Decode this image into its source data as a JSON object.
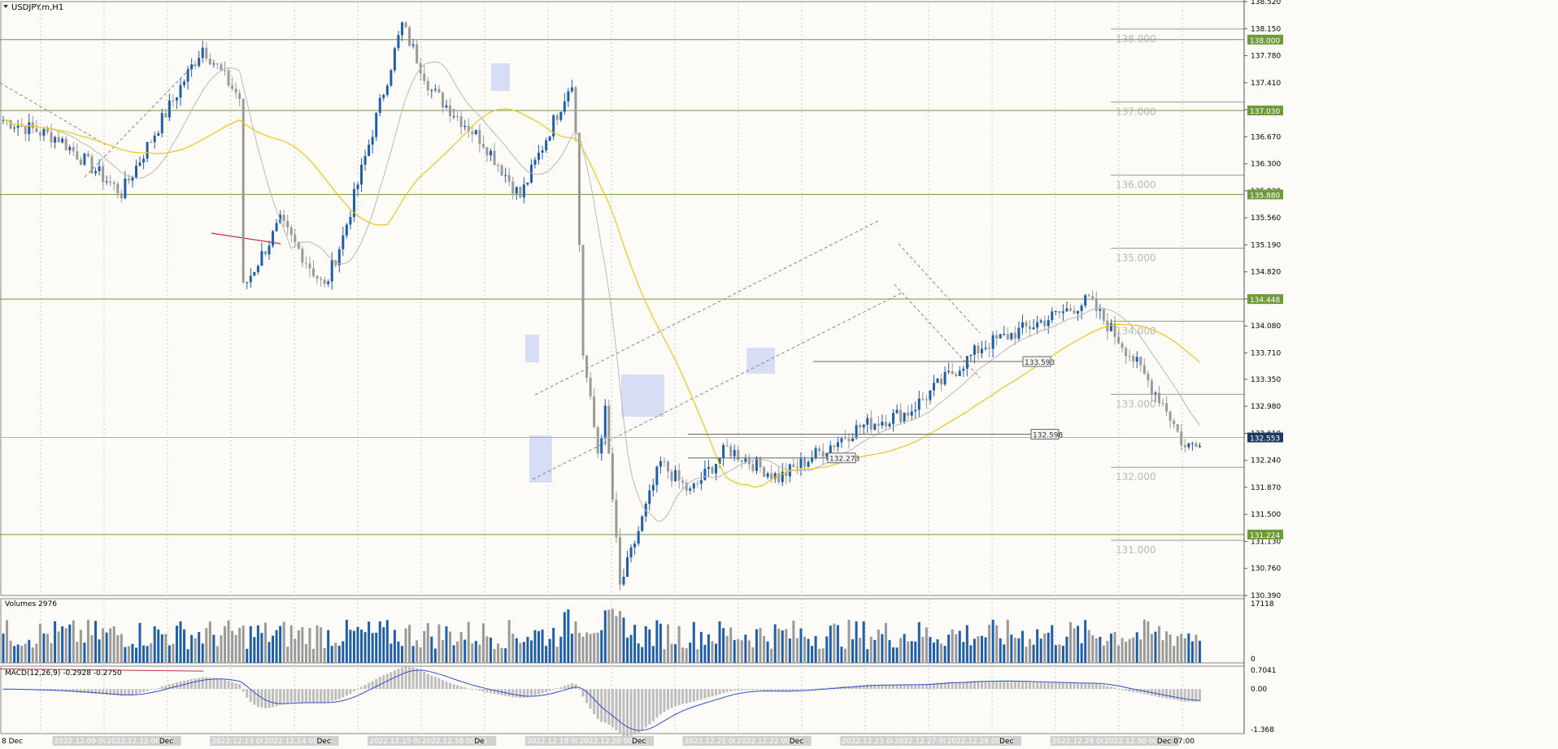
{
  "window": {
    "title": "USDJPY.m,H1",
    "volumes_label": "Volumes 2976",
    "macd_label": "MACD(12,26,9) -0.2928 -0.2750"
  },
  "colors": {
    "bg": "#fdfbf8",
    "grid": "#c8c8c8",
    "bull": "#1f5fa8",
    "bear": "#9a9a9a",
    "ma_fast": "#b8b8b8",
    "ma_slow": "#f0c419",
    "hline": "#6e9a3a",
    "macd_line": "#2f50c8",
    "macd_hist": "#bdbdbd",
    "current_price": "#1d3a5c",
    "highlight": "#c9d3f3"
  },
  "chart_data": {
    "type": "candlestick",
    "symbol": "USDJPY.m",
    "timeframe": "H1",
    "price_ticks": [
      "138.520",
      "138.150",
      "137.780",
      "137.410",
      "137.040",
      "136.670",
      "136.300",
      "135.930",
      "135.560",
      "135.190",
      "134.820",
      "134.450",
      "134.080",
      "133.710",
      "133.350",
      "132.980",
      "132.610",
      "132.240",
      "131.870",
      "131.500",
      "131.130",
      "130.760",
      "130.390"
    ],
    "ylim": [
      130.39,
      138.52
    ],
    "horizontal_levels": [
      {
        "label": "138.000",
        "value": 138.0
      },
      {
        "label": "137.030",
        "value": 137.03
      },
      {
        "label": "135.880",
        "value": 135.88
      },
      {
        "label": "134.448",
        "value": 134.448
      },
      {
        "label": "131.224",
        "value": 131.224
      }
    ],
    "current_price": {
      "label": "132.553",
      "value": 132.553
    },
    "round_levels": [
      {
        "label": "138.000",
        "value": 138.0
      },
      {
        "label": "137.000",
        "value": 137.0
      },
      {
        "label": "136.000",
        "value": 136.0
      },
      {
        "label": "135.000",
        "value": 135.0
      },
      {
        "label": "134.000",
        "value": 134.0
      },
      {
        "label": "133.000",
        "value": 133.0
      },
      {
        "label": "132.000",
        "value": 132.0
      },
      {
        "label": "131.000",
        "value": 131.0
      }
    ],
    "price_labels": [
      {
        "label": "133.593",
        "value": 133.593
      },
      {
        "label": "132.598",
        "value": 132.598
      },
      {
        "label": "132.273",
        "value": 132.273
      }
    ],
    "time_labels": [
      "8 Dec",
      "2022.12.09 00:00",
      "2022.12.12 00:00",
      "Dec",
      "2022.12.13 00:00",
      "2022.12.14 00:00",
      "Dec",
      "2022.12.15 00:00",
      "2022.12.16 00:00",
      "De",
      "2022.12.19 00:00",
      "2022.12.20 00:00",
      "Dec",
      "2022.12.21 00:00",
      "2022.12.22 00:00",
      "Dec",
      "2022.12.23 00:00",
      "2022.12.27 00:00",
      "2022.12.28 00:00",
      "Dec",
      "2022.12.29 00:00",
      "2022.12.30 00:00",
      "Dec 07:00"
    ],
    "key_prices": [
      {
        "bar": 0,
        "price": 136.9
      },
      {
        "bar": 15,
        "price": 136.65
      },
      {
        "bar": 32,
        "price": 135.9
      },
      {
        "bar": 54,
        "price": 137.9
      },
      {
        "bar": 64,
        "price": 137.2
      },
      {
        "bar": 65,
        "price": 134.6
      },
      {
        "bar": 75,
        "price": 135.5
      },
      {
        "bar": 87,
        "price": 134.6
      },
      {
        "bar": 92,
        "price": 135.3
      },
      {
        "bar": 108,
        "price": 138.2
      },
      {
        "bar": 116,
        "price": 137.3
      },
      {
        "bar": 130,
        "price": 136.6
      },
      {
        "bar": 140,
        "price": 135.85
      },
      {
        "bar": 154,
        "price": 137.45
      },
      {
        "bar": 155,
        "price": 136.7
      },
      {
        "bar": 157,
        "price": 133.7
      },
      {
        "bar": 161,
        "price": 132.35
      },
      {
        "bar": 163,
        "price": 132.9
      },
      {
        "bar": 167,
        "price": 130.5
      },
      {
        "bar": 178,
        "price": 132.2
      },
      {
        "bar": 186,
        "price": 131.8
      },
      {
        "bar": 196,
        "price": 132.4
      },
      {
        "bar": 210,
        "price": 132.0
      },
      {
        "bar": 232,
        "price": 132.7
      },
      {
        "bar": 245,
        "price": 132.9
      },
      {
        "bar": 265,
        "price": 133.8
      },
      {
        "bar": 277,
        "price": 134.05
      },
      {
        "bar": 294,
        "price": 134.43
      },
      {
        "bar": 305,
        "price": 133.7
      },
      {
        "bar": 315,
        "price": 132.95
      },
      {
        "bar": 320,
        "price": 132.4
      },
      {
        "bar": 324,
        "price": 132.55
      }
    ],
    "volume_scale": {
      "max_label": "17118",
      "min_label": "0"
    },
    "macd_scale": {
      "top_label": "0.7041",
      "mid_label": "0.00",
      "bottom_label": "-1.368"
    },
    "macd_params": {
      "fast": 12,
      "slow": 26,
      "signal": 9,
      "main": -0.2928,
      "signal_value": -0.275
    }
  }
}
